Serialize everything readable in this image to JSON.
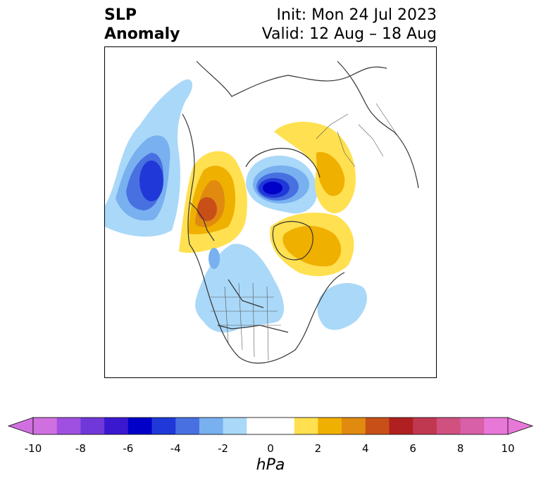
{
  "title": {
    "left_line1": "SLP",
    "left_line2": "Anomaly",
    "right_line1": "Init: Mon 24 Jul 2023",
    "right_line2": "Valid: 12 Aug – 18 Aug"
  },
  "colorbar": {
    "unit": "hPa",
    "ticks": [
      "-10",
      "-8",
      "-6",
      "-4",
      "-2",
      "0",
      "2",
      "4",
      "6",
      "8",
      "10"
    ],
    "colors": [
      "#d070e0",
      "#a050e0",
      "#7038d8",
      "#3a18d0",
      "#0000c8",
      "#2038d8",
      "#4870e0",
      "#78b0f0",
      "#aad8f8",
      "#ffffff",
      "#ffffff",
      "#ffe050",
      "#f0b000",
      "#e08a10",
      "#c85018",
      "#b02020",
      "#c03850",
      "#d05080",
      "#d860a8",
      "#e878d8"
    ],
    "extend": "both"
  },
  "map": {
    "projection": "north-polar-stereographic",
    "anomalies": [
      {
        "region": "North Pacific (south of Aleutians)",
        "sign": "negative",
        "peak_hpa": -5
      },
      {
        "region": "Alaska / Beaufort Sea",
        "sign": "positive",
        "peak_hpa": 5
      },
      {
        "region": "Arctic Ocean (north of Siberia)",
        "sign": "negative",
        "peak_hpa": -6
      },
      {
        "region": "Scandinavia / Barents Sea",
        "sign": "positive",
        "peak_hpa": 2
      },
      {
        "region": "Greenland / North Atlantic",
        "sign": "positive",
        "peak_hpa": 3
      },
      {
        "region": "North America (central/northwest)",
        "sign": "negative",
        "peak_hpa": -1
      },
      {
        "region": "Western North Atlantic",
        "sign": "negative",
        "peak_hpa": -1
      }
    ]
  }
}
